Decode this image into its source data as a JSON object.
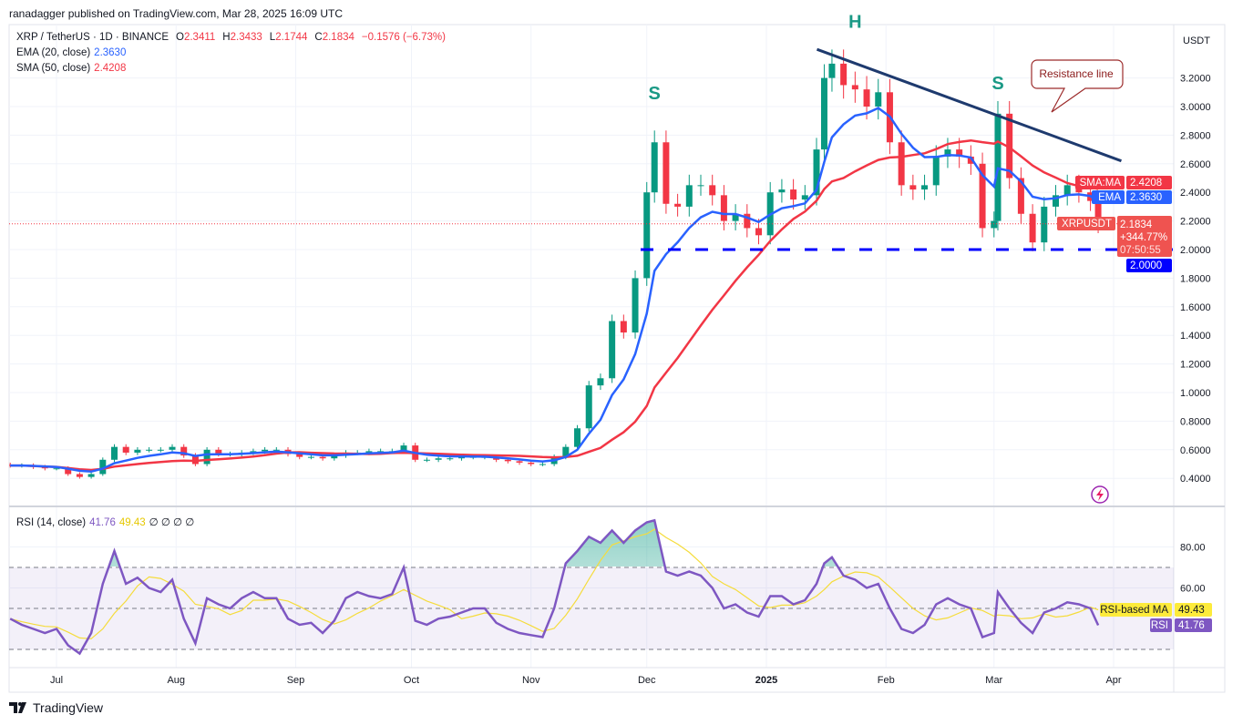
{
  "header": {
    "published": "ranadagger published on TradingView.com, Mar 28, 2025 16:09 UTC"
  },
  "legend": {
    "symbol": "XRP / TetherUS · 1D · BINANCE",
    "o_label": "O",
    "o": "2.3411",
    "h_label": "H",
    "h": "2.3433",
    "l_label": "L",
    "l": "2.1744",
    "c_label": "C",
    "c": "2.1834",
    "change": "−0.1576 (−6.73%)",
    "ema_label": "EMA (20, close)",
    "ema_value": "2.3630",
    "sma_label": "SMA (50, close)",
    "sma_value": "2.4208"
  },
  "rsi_legend": {
    "label": "RSI (14, close)",
    "rsi": "41.76",
    "ma": "49.43",
    "extras": "∅  ∅  ∅  ∅"
  },
  "price_tags": {
    "currency": "USDT",
    "sma_tag": "SMA:MA",
    "sma_value": "2.4208",
    "ema_tag": "EMA",
    "ema_value": "2.3630",
    "symbol_tag": "XRPUSDT",
    "last": "2.1834",
    "pct": "+344.77%",
    "countdown": "07:50:55",
    "support_value": "2.0000"
  },
  "rsi_tags": {
    "ma_tag": "RSI-based MA",
    "ma_value": "49.43",
    "rsi_tag": "RSI",
    "rsi_value": "41.76"
  },
  "annotations": {
    "left_shoulder": "S",
    "head": "H",
    "right_shoulder": "S",
    "callout": "Resistance line"
  },
  "footer": {
    "brand": "TradingView"
  },
  "colors": {
    "up": "#089981",
    "down": "#f23645",
    "ema": "#2962ff",
    "sma": "#f23645",
    "rsi": "#7e57c2",
    "rsi_ma": "#f5dc3b",
    "support": "#0000ff",
    "resistance": "#1e3a6e",
    "label": "#1a9985"
  },
  "chart_data": {
    "type": "candlestick",
    "symbol": "XRPUSDT",
    "interval": "1D",
    "ylim": [
      0.25,
      3.45
    ],
    "y_ticks": [
      "3.2000",
      "3.0000",
      "2.8000",
      "2.6000",
      "2.4000",
      "2.2000",
      "2.0000",
      "1.8000",
      "1.6000",
      "1.4000",
      "1.2000",
      "1.0000",
      "0.8000",
      "0.6000",
      "0.4000"
    ],
    "x_ticks": [
      {
        "label": "Jul",
        "date": "2024-07-01"
      },
      {
        "label": "Aug",
        "date": "2024-08-01"
      },
      {
        "label": "Sep",
        "date": "2024-09-01"
      },
      {
        "label": "Oct",
        "date": "2024-10-01"
      },
      {
        "label": "Nov",
        "date": "2024-11-01"
      },
      {
        "label": "Dec",
        "date": "2024-12-01"
      },
      {
        "label": "2025",
        "date": "2025-01-01"
      },
      {
        "label": "Feb",
        "date": "2025-02-01"
      },
      {
        "label": "Mar",
        "date": "2025-03-01"
      },
      {
        "label": "Apr",
        "date": "2025-04-01"
      }
    ],
    "support_level": 2.0,
    "resistance_line": [
      {
        "date": "2025-01-16",
        "price": 3.4
      },
      {
        "date": "2025-04-03",
        "price": 2.62
      }
    ],
    "shoulders_head": [
      {
        "label": "S",
        "date": "2024-12-03",
        "price": 3.05
      },
      {
        "label": "H",
        "date": "2025-01-24",
        "price": 3.55
      },
      {
        "label": "S",
        "date": "2025-03-02",
        "price": 3.12
      }
    ],
    "rsi_ylim": [
      20,
      100
    ],
    "rsi_ticks": [
      "80.00",
      "60.00"
    ],
    "rsi_levels": [
      70,
      50,
      30
    ],
    "columns": [
      "date",
      "close",
      "rsi"
    ],
    "rows": [
      [
        "2024-06-19",
        0.49,
        45
      ],
      [
        "2024-06-22",
        0.49,
        42
      ],
      [
        "2024-06-25",
        0.48,
        40
      ],
      [
        "2024-06-28",
        0.47,
        38
      ],
      [
        "2024-07-01",
        0.47,
        40
      ],
      [
        "2024-07-04",
        0.43,
        32
      ],
      [
        "2024-07-07",
        0.41,
        28
      ],
      [
        "2024-07-10",
        0.43,
        38
      ],
      [
        "2024-07-13",
        0.53,
        62
      ],
      [
        "2024-07-16",
        0.62,
        78
      ],
      [
        "2024-07-19",
        0.58,
        62
      ],
      [
        "2024-07-22",
        0.6,
        65
      ],
      [
        "2024-07-25",
        0.6,
        60
      ],
      [
        "2024-07-28",
        0.6,
        58
      ],
      [
        "2024-07-31",
        0.62,
        64
      ],
      [
        "2024-08-03",
        0.56,
        45
      ],
      [
        "2024-08-06",
        0.5,
        33
      ],
      [
        "2024-08-09",
        0.6,
        55
      ],
      [
        "2024-08-12",
        0.57,
        52
      ],
      [
        "2024-08-15",
        0.57,
        50
      ],
      [
        "2024-08-18",
        0.58,
        55
      ],
      [
        "2024-08-21",
        0.59,
        58
      ],
      [
        "2024-08-24",
        0.6,
        55
      ],
      [
        "2024-08-27",
        0.6,
        55
      ],
      [
        "2024-08-30",
        0.57,
        45
      ],
      [
        "2024-09-02",
        0.55,
        42
      ],
      [
        "2024-09-05",
        0.55,
        43
      ],
      [
        "2024-09-08",
        0.54,
        38
      ],
      [
        "2024-09-11",
        0.56,
        44
      ],
      [
        "2024-09-14",
        0.58,
        55
      ],
      [
        "2024-09-17",
        0.58,
        58
      ],
      [
        "2024-09-20",
        0.59,
        56
      ],
      [
        "2024-09-23",
        0.59,
        55
      ],
      [
        "2024-09-26",
        0.59,
        57
      ],
      [
        "2024-09-29",
        0.63,
        70
      ],
      [
        "2024-10-02",
        0.53,
        44
      ],
      [
        "2024-10-05",
        0.53,
        42
      ],
      [
        "2024-10-08",
        0.54,
        45
      ],
      [
        "2024-10-11",
        0.54,
        46
      ],
      [
        "2024-10-14",
        0.55,
        48
      ],
      [
        "2024-10-17",
        0.55,
        50
      ],
      [
        "2024-10-20",
        0.55,
        50
      ],
      [
        "2024-10-23",
        0.53,
        43
      ],
      [
        "2024-10-26",
        0.52,
        40
      ],
      [
        "2024-10-29",
        0.51,
        38
      ],
      [
        "2024-11-01",
        0.5,
        37
      ],
      [
        "2024-11-04",
        0.5,
        36
      ],
      [
        "2024-11-07",
        0.55,
        50
      ],
      [
        "2024-11-10",
        0.62,
        72
      ],
      [
        "2024-11-13",
        0.75,
        78
      ],
      [
        "2024-11-16",
        1.05,
        85
      ],
      [
        "2024-11-19",
        1.1,
        82
      ],
      [
        "2024-11-22",
        1.5,
        88
      ],
      [
        "2024-11-25",
        1.42,
        82
      ],
      [
        "2024-11-28",
        1.8,
        88
      ],
      [
        "2024-12-01",
        2.4,
        92
      ],
      [
        "2024-12-03",
        2.75,
        93
      ],
      [
        "2024-12-06",
        2.32,
        68
      ],
      [
        "2024-12-09",
        2.3,
        66
      ],
      [
        "2024-12-12",
        2.45,
        68
      ],
      [
        "2024-12-15",
        2.45,
        66
      ],
      [
        "2024-12-18",
        2.38,
        60
      ],
      [
        "2024-12-21",
        2.2,
        50
      ],
      [
        "2024-12-24",
        2.25,
        52
      ],
      [
        "2024-12-27",
        2.15,
        48
      ],
      [
        "2024-12-30",
        2.1,
        46
      ],
      [
        "2025-01-02",
        2.4,
        56
      ],
      [
        "2025-01-05",
        2.42,
        56
      ],
      [
        "2025-01-08",
        2.35,
        52
      ],
      [
        "2025-01-11",
        2.38,
        54
      ],
      [
        "2025-01-14",
        2.7,
        62
      ],
      [
        "2025-01-16",
        3.2,
        72
      ],
      [
        "2025-01-18",
        3.3,
        75
      ],
      [
        "2025-01-21",
        3.15,
        66
      ],
      [
        "2025-01-24",
        3.12,
        64
      ],
      [
        "2025-01-27",
        3.0,
        60
      ],
      [
        "2025-01-30",
        3.1,
        62
      ],
      [
        "2025-02-02",
        2.75,
        50
      ],
      [
        "2025-02-05",
        2.45,
        40
      ],
      [
        "2025-02-08",
        2.42,
        38
      ],
      [
        "2025-02-11",
        2.45,
        42
      ],
      [
        "2025-02-14",
        2.65,
        52
      ],
      [
        "2025-02-17",
        2.7,
        55
      ],
      [
        "2025-02-20",
        2.65,
        52
      ],
      [
        "2025-02-23",
        2.6,
        50
      ],
      [
        "2025-02-26",
        2.15,
        36
      ],
      [
        "2025-03-01",
        2.2,
        38
      ],
      [
        "2025-03-02",
        2.95,
        58
      ],
      [
        "2025-03-05",
        2.5,
        50
      ],
      [
        "2025-03-08",
        2.25,
        43
      ],
      [
        "2025-03-11",
        2.05,
        38
      ],
      [
        "2025-03-14",
        2.3,
        48
      ],
      [
        "2025-03-17",
        2.38,
        50
      ],
      [
        "2025-03-20",
        2.45,
        53
      ],
      [
        "2025-03-23",
        2.4,
        52
      ],
      [
        "2025-03-26",
        2.34,
        50
      ],
      [
        "2025-03-28",
        2.18,
        41.76
      ]
    ]
  }
}
